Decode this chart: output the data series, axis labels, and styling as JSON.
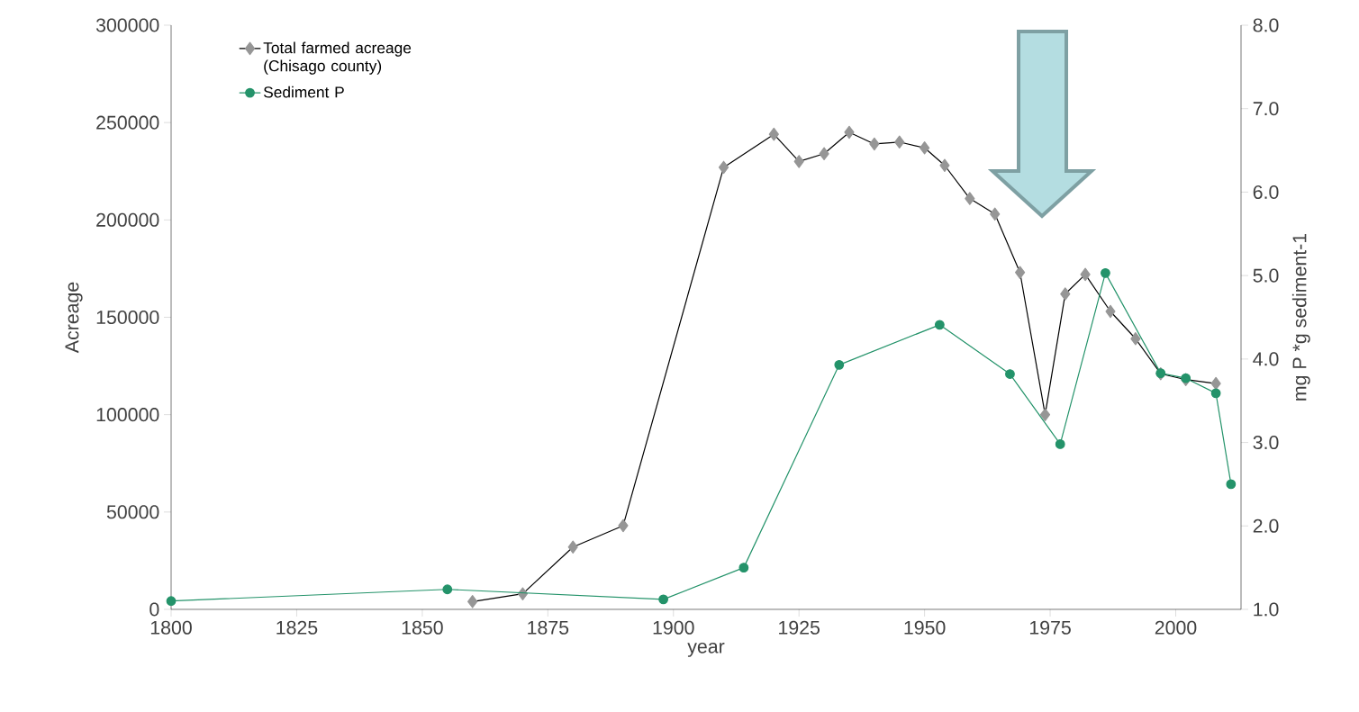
{
  "chart_data": {
    "type": "line",
    "xlabel": "year",
    "ylabel": "Acreage",
    "y2label": "mg P *g sediment-1",
    "xlim": [
      1800,
      2013
    ],
    "xticks": [
      1800,
      1825,
      1850,
      1875,
      1900,
      1925,
      1950,
      1975,
      2000
    ],
    "ylim": [
      0,
      300000
    ],
    "yticks": [
      0,
      50000,
      100000,
      150000,
      200000,
      250000,
      300000
    ],
    "y2lim": [
      1,
      8
    ],
    "y2ticks": [
      {
        "value": 1,
        "label": "1.0"
      },
      {
        "value": 2,
        "label": "2.0"
      },
      {
        "value": 3,
        "label": "3.0"
      },
      {
        "value": 4,
        "label": "4.0"
      },
      {
        "value": 5,
        "label": "5.0"
      },
      {
        "value": 6,
        "label": "6.0"
      },
      {
        "value": 7,
        "label": "7.0"
      },
      {
        "value": 8,
        "label": "8.0"
      }
    ],
    "legend": "top left",
    "grid": false,
    "series": [
      {
        "name": "Total farmed acreage (Chisago county)",
        "color": "#969696",
        "marker": "diamond",
        "x": [
          1860,
          1870,
          1880,
          1890,
          1910,
          1920,
          1925,
          1930,
          1935,
          1940,
          1945,
          1950,
          1954,
          1959,
          1964,
          1969,
          1974,
          1978,
          1982,
          1987,
          1992,
          1997,
          2002,
          2008
        ],
        "values": [
          4000,
          8000,
          32000,
          43000,
          227000,
          244000,
          230000,
          234000,
          245000,
          239000,
          240000,
          237000,
          228000,
          211000,
          203000,
          173000,
          100000,
          162000,
          172000,
          153000,
          139000,
          121000,
          118000,
          116000
        ]
      },
      {
        "name": "Sediment P",
        "color": "#24936a",
        "marker": "circle",
        "axis": "y2",
        "x": [
          1800,
          1855,
          1898,
          1914,
          1933,
          1953,
          1967,
          1977,
          1986,
          1997,
          2002,
          2008,
          2011
        ],
        "values": [
          1.1,
          1.24,
          1.12,
          1.5,
          3.93,
          4.41,
          3.82,
          2.98,
          5.03,
          3.83,
          3.77,
          3.59,
          2.5
        ]
      }
    ]
  }
}
